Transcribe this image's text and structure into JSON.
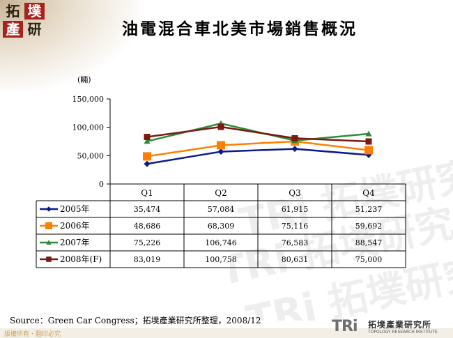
{
  "page": {
    "title": "油電混合車北美市場銷售概況",
    "logo_chars": [
      "拓",
      "墣",
      "產",
      "研"
    ],
    "source": "Source：Green Car Congress；拓墣產業研究所整理，2008/12",
    "copyright": "版權所有・翻印必究",
    "tri_logo": {
      "mark": "TRi",
      "name": "拓墣產業研究所",
      "subtitle": "TOPOLOGY RESEARCH INSTITUTE"
    },
    "watermark_text": "TRi 拓墣研究"
  },
  "colors": {
    "grid_border": "#000000",
    "logo_red": "#a8231e"
  },
  "chart_data": {
    "type": "line",
    "unit_label": "(輛)",
    "categories": [
      "Q1",
      "Q2",
      "Q3",
      "Q4"
    ],
    "ylim": [
      0,
      150000
    ],
    "yticks": [
      0,
      50000,
      100000,
      150000
    ],
    "ytick_labels": [
      "0",
      "50,000",
      "100,000",
      "150,000"
    ],
    "grid": false,
    "legend": "data-table",
    "series": [
      {
        "name": "2005年",
        "values": [
          35474,
          57084,
          61915,
          51237
        ],
        "labels": [
          "35,474",
          "57,084",
          "61,915",
          "51,237"
        ],
        "color": "#0a1a8c",
        "marker": "diamond"
      },
      {
        "name": "2006年",
        "values": [
          48686,
          68309,
          75116,
          59692
        ],
        "labels": [
          "48,686",
          "68,309",
          "75,116",
          "59,692"
        ],
        "color": "#ff7f00",
        "marker": "square"
      },
      {
        "name": "2007年",
        "values": [
          75226,
          106746,
          76583,
          88547
        ],
        "labels": [
          "75,226",
          "106,746",
          "76,583",
          "88,547"
        ],
        "color": "#2e8b3a",
        "marker": "triangle"
      },
      {
        "name": "2008年(F)",
        "values": [
          83019,
          100758,
          80631,
          75000
        ],
        "labels": [
          "83,019",
          "100,758",
          "80,631",
          "75,000"
        ],
        "color": "#7b1a10",
        "marker": "square"
      }
    ]
  }
}
